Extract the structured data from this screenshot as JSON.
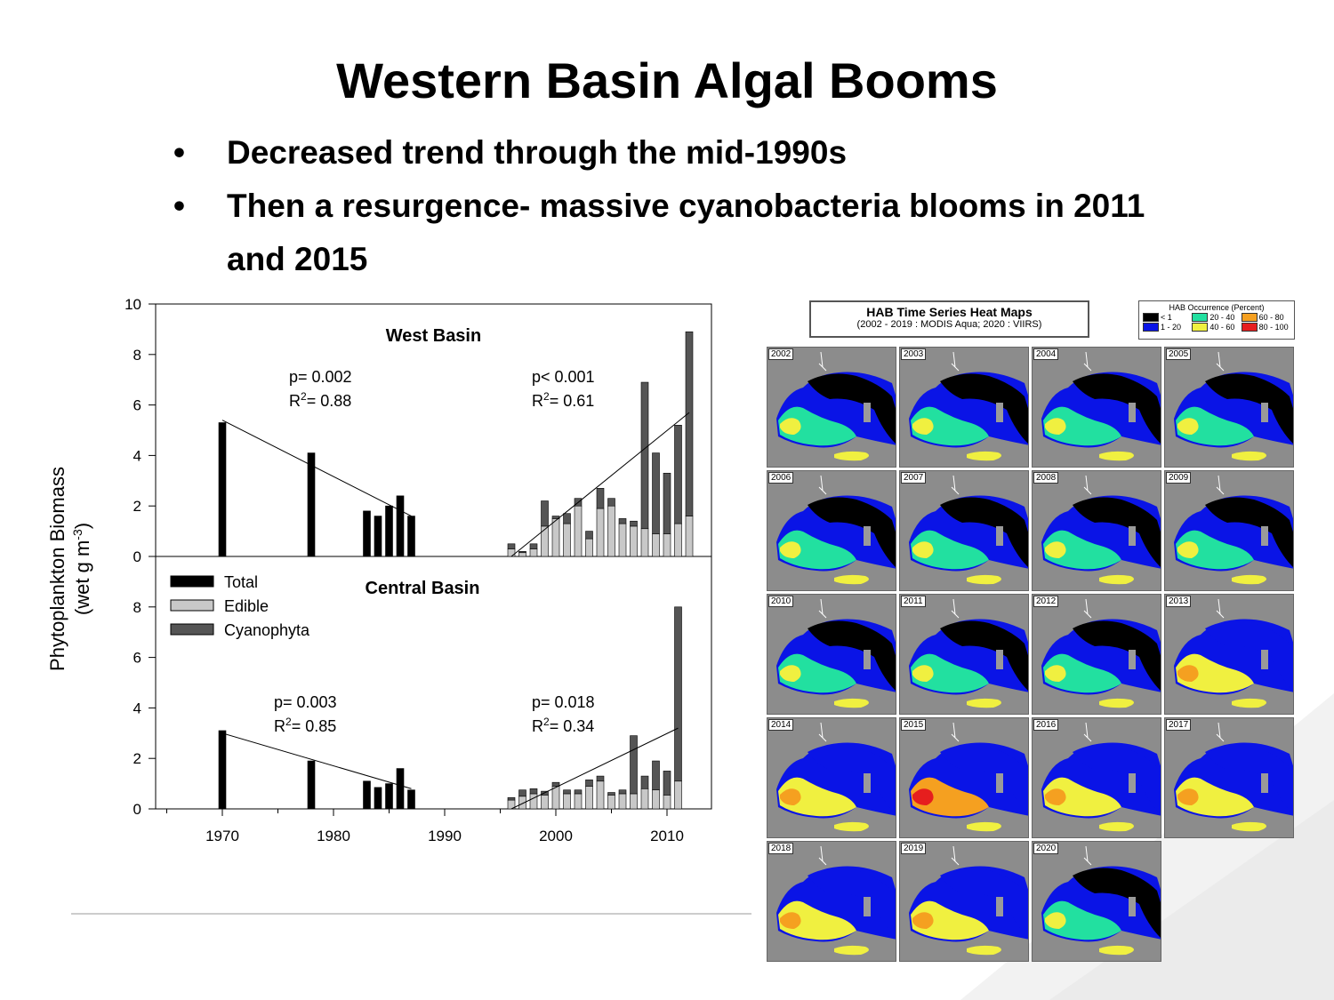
{
  "slide": {
    "title": "Western Basin Algal Booms",
    "bullets": [
      "Decreased trend through the mid-1990s",
      "Then a resurgence- massive cyanobacteria blooms in 2011 and 2015"
    ],
    "bullet_glyph": "•"
  },
  "colors": {
    "total": "#000000",
    "edible": "#c8c8c8",
    "cyanophyta": "#555555",
    "land": "#8c8c8c"
  },
  "chart_data": [
    {
      "type": "bar",
      "title": "West Basin",
      "ylabel_line1": "Phytoplankton Biomass",
      "ylabel_line2": "(wet g m",
      "ylabel_sup": "-3",
      "ylabel_close": ")",
      "xlim": [
        1964,
        2014
      ],
      "ylim": [
        0,
        10
      ],
      "yticks": [
        "0",
        "2",
        "4",
        "6",
        "8",
        "10"
      ],
      "xticks": [
        "1970",
        "1980",
        "1990",
        "2000",
        "2010"
      ],
      "stats": [
        {
          "p": "p= 0.002",
          "r2_prefix": "R",
          "r2_sup": "2",
          "r2_value": "= 0.88",
          "x": 1977,
          "y": 7.0
        },
        {
          "p": "p< 0.001",
          "r2_prefix": "R",
          "r2_sup": "2",
          "r2_value": "= 0.61",
          "x": 2000,
          "y": 7.1
        }
      ],
      "total_bars": [
        {
          "x": 1970,
          "value": 5.3
        },
        {
          "x": 1978,
          "value": 4.1
        },
        {
          "x": 1983,
          "value": 1.8
        },
        {
          "x": 1984,
          "value": 1.6
        },
        {
          "x": 1985,
          "value": 2.0
        },
        {
          "x": 1986,
          "value": 2.4
        },
        {
          "x": 1987,
          "value": 1.6
        }
      ],
      "stacked_bars": [
        {
          "x": 1996,
          "edible": 0.3,
          "cyanophyta": 0.2
        },
        {
          "x": 1997,
          "edible": 0.15,
          "cyanophyta": 0.05
        },
        {
          "x": 1998,
          "edible": 0.3,
          "cyanophyta": 0.2
        },
        {
          "x": 1999,
          "edible": 1.2,
          "cyanophyta": 1.0
        },
        {
          "x": 2000,
          "edible": 1.5,
          "cyanophyta": 0.1
        },
        {
          "x": 2001,
          "edible": 1.3,
          "cyanophyta": 0.4
        },
        {
          "x": 2002,
          "edible": 2.0,
          "cyanophyta": 0.3
        },
        {
          "x": 2003,
          "edible": 0.7,
          "cyanophyta": 0.3
        },
        {
          "x": 2004,
          "edible": 1.9,
          "cyanophyta": 0.8
        },
        {
          "x": 2005,
          "edible": 2.0,
          "cyanophyta": 0.3
        },
        {
          "x": 2006,
          "edible": 1.3,
          "cyanophyta": 0.2
        },
        {
          "x": 2007,
          "edible": 1.2,
          "cyanophyta": 0.2
        },
        {
          "x": 2008,
          "edible": 1.1,
          "cyanophyta": 5.8
        },
        {
          "x": 2009,
          "edible": 0.9,
          "cyanophyta": 3.2
        },
        {
          "x": 2010,
          "edible": 0.9,
          "cyanophyta": 2.4
        },
        {
          "x": 2011,
          "edible": 1.3,
          "cyanophyta": 3.9
        },
        {
          "x": 2012,
          "edible": 1.6,
          "cyanophyta": 7.3
        }
      ],
      "trendlines": [
        {
          "x1": 1970,
          "y1": 5.4,
          "x2": 1987,
          "y2": 1.6
        },
        {
          "x1": 1996,
          "y1": 0.0,
          "x2": 2012,
          "y2": 5.7
        }
      ]
    },
    {
      "type": "bar",
      "title": "Central Basin",
      "xlim": [
        1964,
        2014
      ],
      "ylim": [
        0,
        10
      ],
      "yticks": [
        "0",
        "2",
        "4",
        "6",
        "8"
      ],
      "stats": [
        {
          "p": "p= 0.003",
          "r2_prefix": "R",
          "r2_sup": "2",
          "r2_value": "= 0.85",
          "x": 1986,
          "y": 3.8
        },
        {
          "p": "p= 0.018",
          "r2_prefix": "R",
          "r2_sup": "2",
          "r2_value": "= 0.34",
          "x": 2000,
          "y": 3.9
        }
      ],
      "legend": [
        {
          "label": "Total",
          "key": "total"
        },
        {
          "label": "Edible",
          "key": "edible"
        },
        {
          "label": "Cyanophyta",
          "key": "cyanophyta"
        }
      ],
      "legend_position": "top-left",
      "total_bars": [
        {
          "x": 1970,
          "value": 3.1
        },
        {
          "x": 1978,
          "value": 1.9
        },
        {
          "x": 1983,
          "value": 1.1
        },
        {
          "x": 1984,
          "value": 0.85
        },
        {
          "x": 1985,
          "value": 1.0
        },
        {
          "x": 1986,
          "value": 1.6
        },
        {
          "x": 1987,
          "value": 0.75
        }
      ],
      "stacked_bars": [
        {
          "x": 1996,
          "edible": 0.35,
          "cyanophyta": 0.1
        },
        {
          "x": 1997,
          "edible": 0.5,
          "cyanophyta": 0.25
        },
        {
          "x": 1998,
          "edible": 0.6,
          "cyanophyta": 0.2
        },
        {
          "x": 1999,
          "edible": 0.55,
          "cyanophyta": 0.15
        },
        {
          "x": 2000,
          "edible": 0.9,
          "cyanophyta": 0.15
        },
        {
          "x": 2001,
          "edible": 0.6,
          "cyanophyta": 0.15
        },
        {
          "x": 2002,
          "edible": 0.6,
          "cyanophyta": 0.15
        },
        {
          "x": 2003,
          "edible": 0.9,
          "cyanophyta": 0.25
        },
        {
          "x": 2004,
          "edible": 1.1,
          "cyanophyta": 0.2
        },
        {
          "x": 2005,
          "edible": 0.55,
          "cyanophyta": 0.1
        },
        {
          "x": 2006,
          "edible": 0.6,
          "cyanophyta": 0.15
        },
        {
          "x": 2007,
          "edible": 0.6,
          "cyanophyta": 2.3
        },
        {
          "x": 2008,
          "edible": 0.8,
          "cyanophyta": 0.5
        },
        {
          "x": 2009,
          "edible": 0.75,
          "cyanophyta": 1.15
        },
        {
          "x": 2010,
          "edible": 0.55,
          "cyanophyta": 0.95
        },
        {
          "x": 2011,
          "edible": 1.1,
          "cyanophyta": 6.9
        }
      ],
      "trendlines": [
        {
          "x1": 1970,
          "y1": 3.0,
          "x2": 1987,
          "y2": 0.8
        },
        {
          "x1": 1996,
          "y1": 0.0,
          "x2": 2011,
          "y2": 3.2
        }
      ]
    }
  ],
  "heatmaps": {
    "title": "HAB Time Series Heat Maps",
    "subtitle": "(2002 - 2019 : MODIS Aqua; 2020 : VIIRS)",
    "legend_title": "HAB Occurrence (Percent)",
    "legend": [
      {
        "label": "< 1",
        "color": "#000000"
      },
      {
        "label": "20 - 40",
        "color": "#22e0a0"
      },
      {
        "label": "60 - 80",
        "color": "#f5a020"
      },
      {
        "label": "1 - 20",
        "color": "#0a14e6"
      },
      {
        "label": "40 - 60",
        "color": "#f0f040"
      },
      {
        "label": "80 - 100",
        "color": "#e61e1e"
      }
    ],
    "years": [
      {
        "year": "2002",
        "bloom": 2
      },
      {
        "year": "2003",
        "bloom": 2
      },
      {
        "year": "2004",
        "bloom": 2
      },
      {
        "year": "2005",
        "bloom": 2
      },
      {
        "year": "2006",
        "bloom": 2
      },
      {
        "year": "2007",
        "bloom": 1
      },
      {
        "year": "2008",
        "bloom": 3
      },
      {
        "year": "2009",
        "bloom": 2
      },
      {
        "year": "2010",
        "bloom": 3
      },
      {
        "year": "2011",
        "bloom": 2
      },
      {
        "year": "2012",
        "bloom": 2
      },
      {
        "year": "2013",
        "bloom": 4
      },
      {
        "year": "2014",
        "bloom": 4
      },
      {
        "year": "2015",
        "bloom": 5
      },
      {
        "year": "2016",
        "bloom": 4
      },
      {
        "year": "2017",
        "bloom": 4
      },
      {
        "year": "2018",
        "bloom": 4
      },
      {
        "year": "2019",
        "bloom": 4
      },
      {
        "year": "2020",
        "bloom": 2
      }
    ]
  }
}
